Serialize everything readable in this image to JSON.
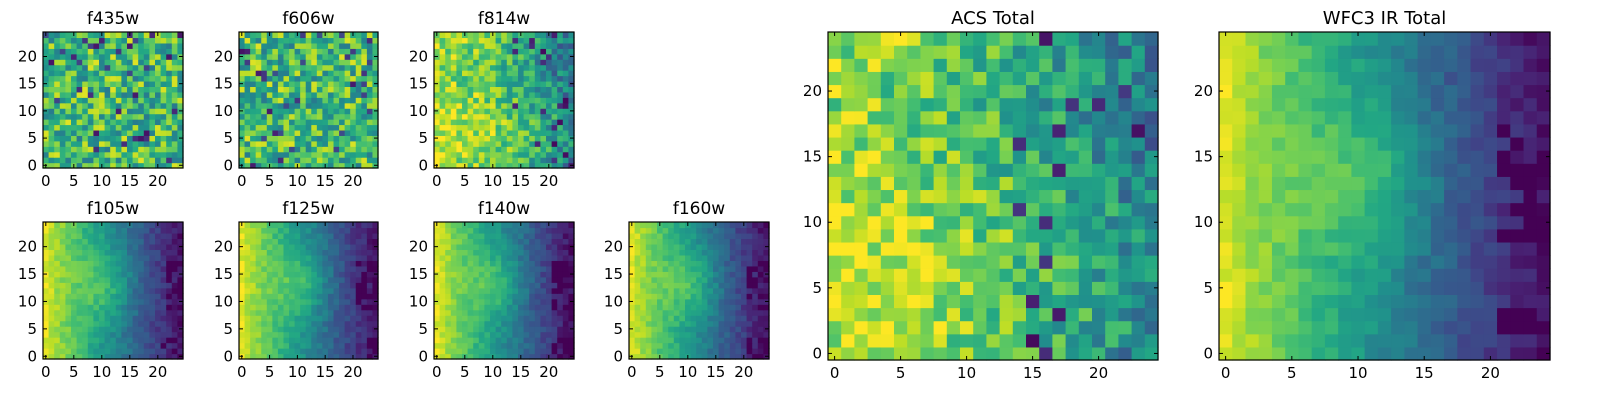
{
  "figure": {
    "description_colormap": "viridis"
  },
  "colors": {
    "frame": "#000000",
    "background": "#ffffff"
  },
  "chart_data": [
    {
      "type": "heatmap",
      "title": "f435w",
      "grid_size": 25,
      "xlim": [
        0,
        24
      ],
      "ylim": [
        0,
        24
      ],
      "x_ticks": [
        0,
        5,
        10,
        15,
        20
      ],
      "y_ticks": [
        0,
        5,
        10,
        15,
        20
      ],
      "pattern": "noise"
    },
    {
      "type": "heatmap",
      "title": "f606w",
      "grid_size": 25,
      "xlim": [
        0,
        24
      ],
      "ylim": [
        0,
        24
      ],
      "x_ticks": [
        0,
        5,
        10,
        15,
        20
      ],
      "y_ticks": [
        0,
        5,
        10,
        15,
        20
      ],
      "pattern": "noise"
    },
    {
      "type": "heatmap",
      "title": "f814w",
      "grid_size": 25,
      "xlim": [
        0,
        24
      ],
      "ylim": [
        0,
        24
      ],
      "x_ticks": [
        0,
        5,
        10,
        15,
        20
      ],
      "y_ticks": [
        0,
        5,
        10,
        15,
        20
      ],
      "pattern": "acs"
    },
    {
      "type": "heatmap",
      "title": "f105w",
      "grid_size": 25,
      "xlim": [
        0,
        24
      ],
      "ylim": [
        0,
        24
      ],
      "x_ticks": [
        0,
        5,
        10,
        15,
        20
      ],
      "y_ticks": [
        0,
        5,
        10,
        15,
        20
      ],
      "pattern": "ir"
    },
    {
      "type": "heatmap",
      "title": "f125w",
      "grid_size": 25,
      "xlim": [
        0,
        24
      ],
      "ylim": [
        0,
        24
      ],
      "x_ticks": [
        0,
        5,
        10,
        15,
        20
      ],
      "y_ticks": [
        0,
        5,
        10,
        15,
        20
      ],
      "pattern": "ir"
    },
    {
      "type": "heatmap",
      "title": "f140w",
      "grid_size": 25,
      "xlim": [
        0,
        24
      ],
      "ylim": [
        0,
        24
      ],
      "x_ticks": [
        0,
        5,
        10,
        15,
        20
      ],
      "y_ticks": [
        0,
        5,
        10,
        15,
        20
      ],
      "pattern": "ir"
    },
    {
      "type": "heatmap",
      "title": "f160w",
      "grid_size": 25,
      "xlim": [
        0,
        24
      ],
      "ylim": [
        0,
        24
      ],
      "x_ticks": [
        0,
        5,
        10,
        15,
        20
      ],
      "y_ticks": [
        0,
        5,
        10,
        15,
        20
      ],
      "pattern": "ir"
    },
    {
      "type": "heatmap",
      "title": "ACS Total",
      "grid_size": 25,
      "xlim": [
        0,
        24
      ],
      "ylim": [
        0,
        24
      ],
      "x_ticks": [
        0,
        5,
        10,
        15,
        20
      ],
      "y_ticks": [
        0,
        5,
        10,
        15,
        20
      ],
      "pattern": "acs"
    },
    {
      "type": "heatmap",
      "title": "WFC3 IR Total",
      "grid_size": 25,
      "xlim": [
        0,
        24
      ],
      "ylim": [
        0,
        24
      ],
      "x_ticks": [
        0,
        5,
        10,
        15,
        20
      ],
      "y_ticks": [
        0,
        5,
        10,
        15,
        20
      ],
      "pattern": "ir"
    }
  ]
}
